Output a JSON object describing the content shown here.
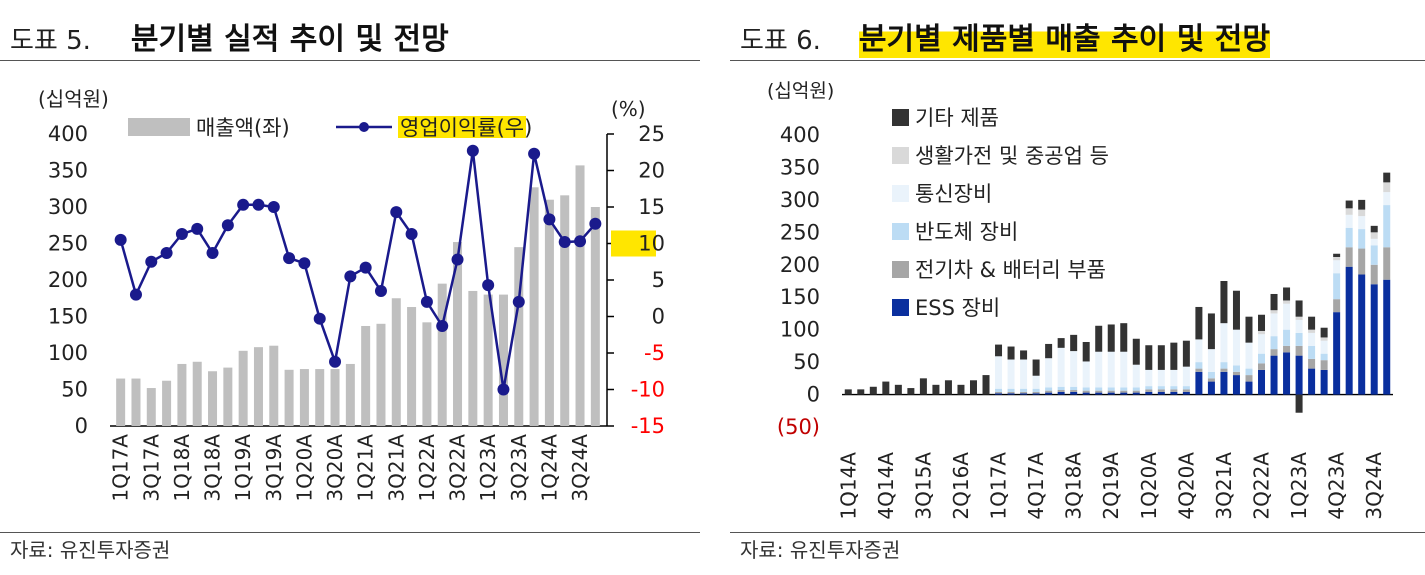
{
  "left": {
    "figure_no": "도표 5.",
    "title": "분기별 실적 추이 및 전망",
    "source": "자료: 유진투자증권",
    "unit_left": "(십억원)",
    "unit_right": "(%)",
    "colors": {
      "bar": "#bfbfbf",
      "line": "#1a1a8c",
      "highlight": "#ffe600",
      "negative": "#ff0000"
    },
    "chart_data": {
      "type": "bar+line",
      "categories": [
        "1Q17A",
        "2Q17A",
        "3Q17A",
        "4Q17A",
        "1Q18A",
        "2Q18A",
        "3Q18A",
        "4Q18A",
        "1Q19A",
        "2Q19A",
        "3Q19A",
        "4Q19A",
        "1Q20A",
        "2Q20A",
        "3Q20A",
        "4Q20A",
        "1Q21A",
        "2Q21A",
        "3Q21A",
        "4Q21A",
        "1Q22A",
        "2Q22A",
        "3Q22A",
        "4Q22A",
        "1Q23A",
        "2Q23A",
        "3Q23A",
        "4Q23A",
        "1Q24A",
        "2Q24A",
        "3Q24A",
        "4Q24A"
      ],
      "xtick_labels": [
        "1Q17A",
        "3Q17A",
        "1Q18A",
        "3Q18A",
        "1Q19A",
        "3Q19A",
        "1Q20A",
        "3Q20A",
        "1Q21A",
        "3Q21A",
        "1Q22A",
        "3Q22A",
        "1Q23A",
        "3Q23A",
        "1Q24A",
        "3Q24A"
      ],
      "series": [
        {
          "name": "매출액(좌)",
          "type": "bar",
          "axis": "left",
          "values": [
            65,
            65,
            52,
            62,
            85,
            88,
            75,
            80,
            103,
            108,
            110,
            77,
            78,
            78,
            78,
            85,
            137,
            140,
            175,
            163,
            142,
            195,
            252,
            185,
            180,
            180,
            245,
            327,
            310,
            316,
            357,
            300
          ]
        },
        {
          "name": "영업이익률(우)",
          "type": "line",
          "axis": "right",
          "values": [
            10.5,
            3,
            7.5,
            8.7,
            11.3,
            12,
            8.7,
            12.5,
            15.3,
            15.3,
            15,
            8,
            7.3,
            -0.3,
            -6.2,
            5.5,
            6.7,
            3.5,
            14.3,
            11.3,
            2,
            -1.3,
            7.8,
            22.7,
            4.3,
            -10,
            2,
            22.3,
            13.3,
            10.2,
            10.3,
            12.7
          ]
        }
      ],
      "ylim_left": [
        0,
        400
      ],
      "yticks_left": [
        "0",
        "50",
        "100",
        "150",
        "200",
        "250",
        "300",
        "350",
        "400"
      ],
      "ylim_right": [
        -15,
        25
      ],
      "yticks_right": [
        "-15",
        "-10",
        "-5",
        "0",
        "5",
        "10",
        "15",
        "20",
        "25"
      ],
      "highlighted_right_tick": "10",
      "legend": "top"
    }
  },
  "right": {
    "figure_no": "도표 6.",
    "title": "분기별 제품별 매출 추이 및 전망",
    "source": "자료: 유진투자증권",
    "unit": "(십억원)",
    "colors": {
      "기타 제품": "#333333",
      "생활가전 및 중공업 등": "#d9d9d9",
      "통신장비": "#eaf3fb",
      "반도체 장비": "#bcdcf4",
      "전기차 & 배터리 부품": "#a6a6a6",
      "ESS 장비": "#0a2f9e",
      "negative": "#c00000"
    },
    "chart_data": {
      "type": "stacked-bar",
      "categories": [
        "1Q14A",
        "2Q14A",
        "3Q14A",
        "4Q14A",
        "1Q15A",
        "2Q15A",
        "3Q15A",
        "4Q15A",
        "1Q16A",
        "2Q16A",
        "3Q16A",
        "4Q16A",
        "1Q17A",
        "2Q17A",
        "3Q17A",
        "4Q17A",
        "1Q18A",
        "2Q18A",
        "3Q18A",
        "4Q18A",
        "1Q19A",
        "2Q19A",
        "3Q19A",
        "4Q19A",
        "1Q20A",
        "2Q20A",
        "3Q20A",
        "4Q20A",
        "1Q21A",
        "2Q21A",
        "3Q21A",
        "4Q21A",
        "1Q22A",
        "2Q22A",
        "3Q22A",
        "4Q22A",
        "1Q23A",
        "2Q23A",
        "3Q23A",
        "4Q23A",
        "1Q24A",
        "2Q24A",
        "3Q24A",
        "4Q24A"
      ],
      "xtick_labels": [
        "1Q14A",
        "4Q14A",
        "3Q15A",
        "2Q16A",
        "1Q17A",
        "4Q17A",
        "3Q18A",
        "2Q19A",
        "1Q20A",
        "4Q20A",
        "3Q21A",
        "2Q22A",
        "1Q23A",
        "4Q23A",
        "3Q24A"
      ],
      "legend": [
        "기타 제품",
        "생활가전 및 중공업 등",
        "통신장비",
        "반도체 장비",
        "전기차 & 배터리 부품",
        "ESS 장비"
      ],
      "series": [
        {
          "name": "ESS 장비",
          "values": [
            0,
            0,
            0,
            0,
            0,
            0,
            0,
            0,
            0,
            0,
            0,
            0,
            2,
            2,
            2,
            2,
            3,
            4,
            4,
            3,
            3,
            3,
            3,
            3,
            4,
            4,
            4,
            4,
            35,
            20,
            35,
            30,
            20,
            38,
            60,
            65,
            60,
            40,
            38,
            127,
            197,
            185,
            170,
            177
          ]
        },
        {
          "name": "전기차 & 배터리 부품",
          "values": [
            0,
            0,
            0,
            0,
            0,
            0,
            0,
            0,
            0,
            0,
            0,
            0,
            2,
            2,
            2,
            2,
            3,
            3,
            3,
            3,
            3,
            3,
            3,
            3,
            4,
            4,
            4,
            4,
            5,
            5,
            5,
            5,
            10,
            10,
            10,
            10,
            15,
            15,
            15,
            20,
            30,
            40,
            30,
            50
          ]
        },
        {
          "name": "반도체 장비",
          "values": [
            0,
            0,
            0,
            0,
            0,
            0,
            0,
            0,
            0,
            0,
            0,
            0,
            5,
            5,
            5,
            5,
            5,
            5,
            5,
            5,
            5,
            5,
            5,
            5,
            5,
            5,
            5,
            5,
            10,
            10,
            10,
            10,
            10,
            15,
            20,
            25,
            20,
            20,
            10,
            40,
            30,
            30,
            30,
            65
          ]
        },
        {
          "name": "통신장비",
          "values": [
            0,
            0,
            0,
            0,
            0,
            0,
            0,
            0,
            0,
            0,
            0,
            0,
            50,
            45,
            45,
            20,
            45,
            60,
            55,
            40,
            55,
            55,
            55,
            35,
            25,
            25,
            25,
            30,
            35,
            35,
            60,
            55,
            40,
            30,
            35,
            40,
            20,
            20,
            20,
            20,
            20,
            20,
            10,
            20
          ]
        },
        {
          "name": "생활가전 및 중공업 등",
          "values": [
            0,
            0,
            0,
            0,
            0,
            0,
            0,
            0,
            0,
            0,
            0,
            0,
            0,
            0,
            0,
            0,
            0,
            0,
            0,
            0,
            0,
            0,
            0,
            0,
            0,
            0,
            0,
            0,
            0,
            0,
            0,
            0,
            0,
            5,
            5,
            5,
            5,
            5,
            5,
            5,
            10,
            10,
            10,
            15
          ]
        },
        {
          "name": "기타 제품",
          "values": [
            8,
            8,
            12,
            20,
            15,
            10,
            25,
            15,
            22,
            15,
            22,
            30,
            18,
            20,
            14,
            25,
            22,
            15,
            25,
            30,
            40,
            42,
            44,
            40,
            38,
            38,
            42,
            40,
            50,
            55,
            65,
            60,
            40,
            25,
            25,
            20,
            25,
            20,
            15,
            5,
            12,
            15,
            10,
            15
          ]
        }
      ],
      "negative_bar": {
        "category": "1Q23A",
        "value": -28
      },
      "ylim": [
        -50,
        400
      ],
      "yticks": [
        "(50)",
        "0",
        "50",
        "100",
        "150",
        "200",
        "250",
        "300",
        "350",
        "400"
      ]
    }
  }
}
